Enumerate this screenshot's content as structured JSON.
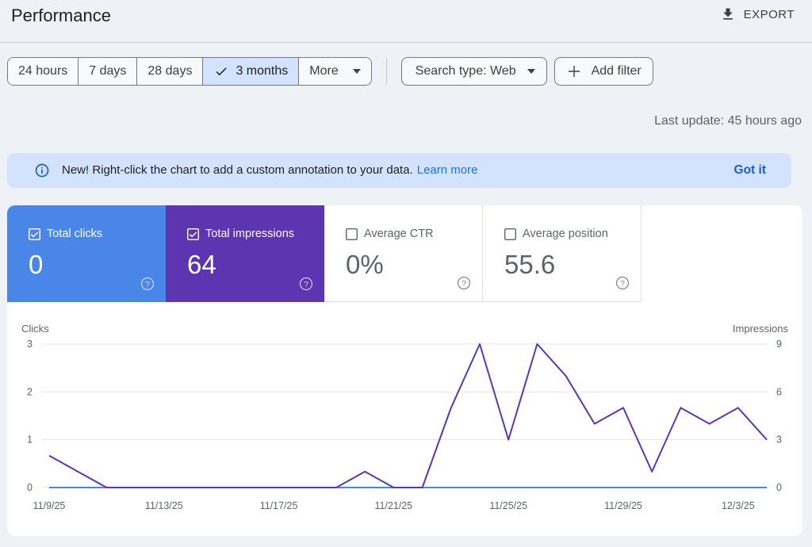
{
  "header": {
    "title": "Performance",
    "export_label": "EXPORT"
  },
  "date_range": {
    "options": [
      {
        "label": "24 hours",
        "selected": false
      },
      {
        "label": "7 days",
        "selected": false
      },
      {
        "label": "28 days",
        "selected": false
      },
      {
        "label": "3 months",
        "selected": true
      },
      {
        "label": "More",
        "selected": false
      }
    ]
  },
  "filters": {
    "search_type_label": "Search type: Web",
    "add_filter_label": "Add filter"
  },
  "last_update": "Last update: 45 hours ago",
  "banner": {
    "text": "New! Right-click the chart to add a custom annotation to your data.",
    "link": "Learn more",
    "dismiss": "Got it"
  },
  "metrics": [
    {
      "label": "Total clicks",
      "value": "0",
      "checked": true,
      "color": "#4a86e8"
    },
    {
      "label": "Total impressions",
      "value": "64",
      "checked": true,
      "color": "#5e35b1"
    },
    {
      "label": "Average CTR",
      "value": "0%",
      "checked": false,
      "color": "#ffffff"
    },
    {
      "label": "Average position",
      "value": "55.6",
      "checked": false,
      "color": "#ffffff"
    }
  ],
  "chart_data": {
    "type": "line",
    "x": [
      "11/9/25",
      "11/10/25",
      "11/11/25",
      "11/12/25",
      "11/13/25",
      "11/14/25",
      "11/15/25",
      "11/16/25",
      "11/17/25",
      "11/18/25",
      "11/19/25",
      "11/20/25",
      "11/21/25",
      "11/22/25",
      "11/23/25",
      "11/24/25",
      "11/25/25",
      "11/26/25",
      "11/27/25",
      "11/28/25",
      "11/29/25",
      "11/30/25",
      "12/1/25",
      "12/2/25",
      "12/3/25",
      "12/4/25"
    ],
    "x_tick_labels": [
      "11/9/25",
      "11/13/25",
      "11/17/25",
      "11/21/25",
      "11/25/25",
      "11/29/25",
      "12/3/25"
    ],
    "series": [
      {
        "name": "Clicks",
        "axis": "left",
        "color": "#4a86e8",
        "values": [
          0,
          0,
          0,
          0,
          0,
          0,
          0,
          0,
          0,
          0,
          0,
          0,
          0,
          0,
          0,
          0,
          0,
          0,
          0,
          0,
          0,
          0,
          0,
          0,
          0,
          0
        ]
      },
      {
        "name": "Impressions",
        "axis": "right",
        "color": "#5e35b1",
        "values": [
          2,
          1,
          0,
          0,
          0,
          0,
          0,
          0,
          0,
          0,
          0,
          1,
          0,
          0,
          5,
          9,
          3,
          9,
          7,
          4,
          5,
          1,
          5,
          4,
          5,
          3
        ]
      }
    ],
    "ylabel_left": "Clicks",
    "ylabel_right": "Impressions",
    "ylim_left": [
      0,
      3
    ],
    "yticks_left": [
      0,
      1,
      2,
      3
    ],
    "ylim_right": [
      0,
      9
    ],
    "yticks_right": [
      0,
      3,
      6,
      9
    ],
    "grid": true
  }
}
